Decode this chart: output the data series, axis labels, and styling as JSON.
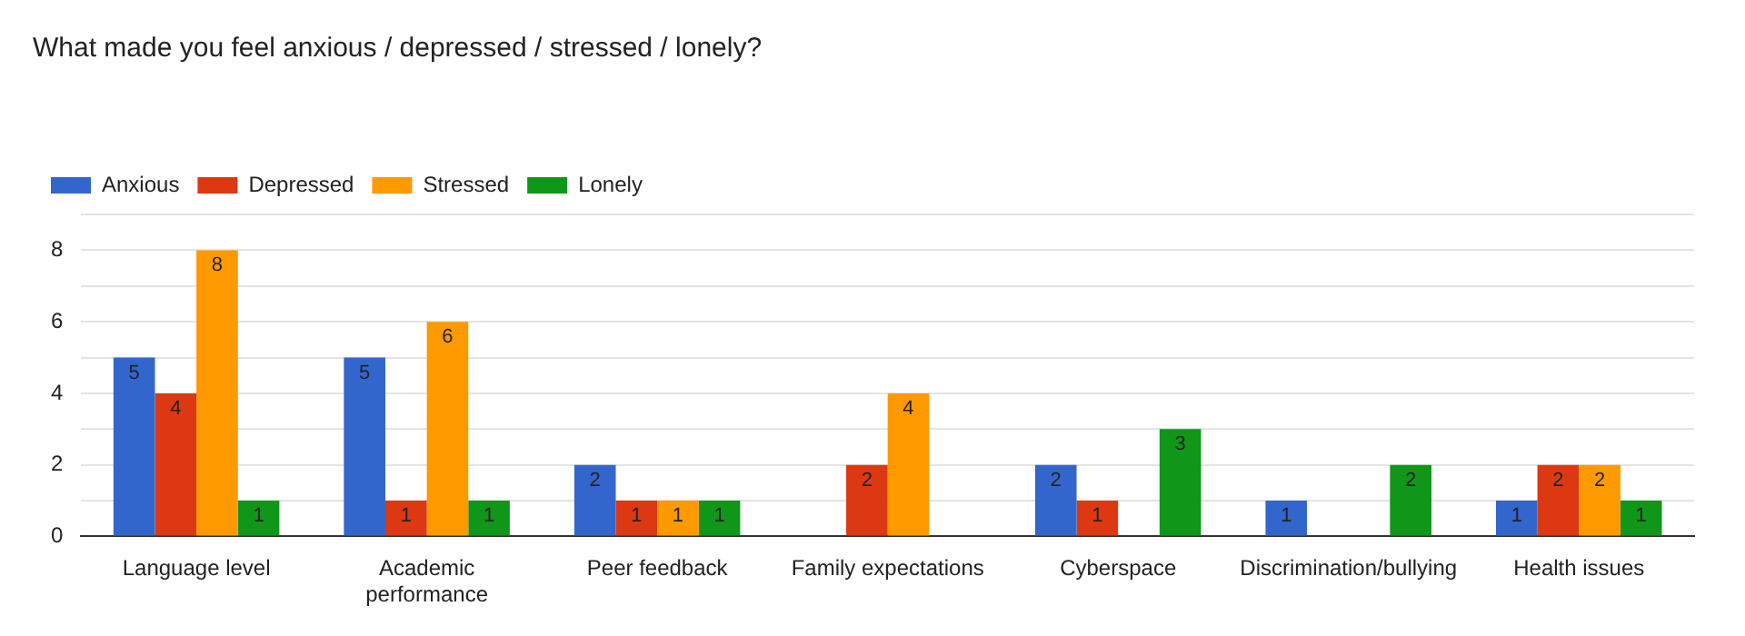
{
  "chart_data": {
    "type": "bar",
    "title": "What made you feel anxious / depressed / stressed / lonely?",
    "categories": [
      "Language level",
      "Academic performance",
      "Peer feedback",
      "Family expectations",
      "Cyberspace",
      "Discrimination/bullying",
      "Health issues"
    ],
    "series": [
      {
        "name": "Anxious",
        "color": "#3366cc",
        "values": [
          5,
          5,
          2,
          null,
          2,
          1,
          1
        ]
      },
      {
        "name": "Depressed",
        "color": "#dc3912",
        "values": [
          4,
          1,
          1,
          2,
          1,
          null,
          2
        ]
      },
      {
        "name": "Stressed",
        "color": "#ff9900",
        "values": [
          8,
          6,
          1,
          4,
          null,
          null,
          2
        ]
      },
      {
        "name": "Lonely",
        "color": "#109618",
        "values": [
          1,
          1,
          1,
          null,
          3,
          2,
          1
        ]
      }
    ],
    "ylim": [
      0,
      9
    ],
    "yticks": [
      0,
      {
        "value": 1,
        "label": null
      },
      2,
      {
        "value": 3,
        "label": null
      },
      4,
      {
        "value": 5,
        "label": null
      },
      6,
      {
        "value": 7,
        "label": null
      },
      8,
      {
        "value": 9,
        "label": null
      }
    ],
    "grid": "y",
    "legend": "top left",
    "data_labels": true
  }
}
